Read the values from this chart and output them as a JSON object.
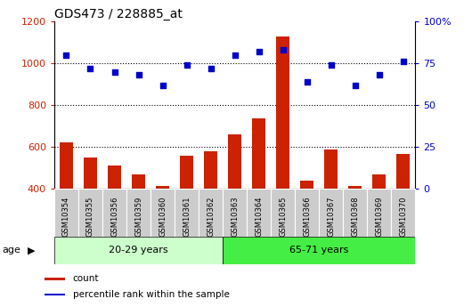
{
  "title": "GDS473 / 228885_at",
  "samples": [
    "GSM10354",
    "GSM10355",
    "GSM10356",
    "GSM10359",
    "GSM10360",
    "GSM10361",
    "GSM10362",
    "GSM10363",
    "GSM10364",
    "GSM10365",
    "GSM10366",
    "GSM10367",
    "GSM10368",
    "GSM10369",
    "GSM10370"
  ],
  "counts": [
    620,
    548,
    510,
    468,
    415,
    558,
    580,
    662,
    735,
    1130,
    440,
    590,
    415,
    468,
    568
  ],
  "percentiles": [
    80,
    72,
    70,
    68,
    62,
    74,
    72,
    80,
    82,
    83,
    64,
    74,
    62,
    68,
    76
  ],
  "group1_label": "20-29 years",
  "group2_label": "65-71 years",
  "group1_count": 7,
  "group2_count": 8,
  "ylim_left": [
    400,
    1200
  ],
  "ylim_right": [
    0,
    100
  ],
  "yticks_left": [
    400,
    600,
    800,
    1000,
    1200
  ],
  "yticks_right": [
    0,
    25,
    50,
    75,
    100
  ],
  "bar_color": "#cc2200",
  "dot_color": "#0000cc",
  "group1_bg": "#ccffcc",
  "group2_bg": "#44ee44",
  "tick_bg": "#cccccc",
  "legend_bar_label": "count",
  "legend_dot_label": "percentile rank within the sample",
  "age_label": "age",
  "grid_lines": [
    600,
    800,
    1000
  ],
  "title_fontsize": 10,
  "bar_width": 0.55
}
